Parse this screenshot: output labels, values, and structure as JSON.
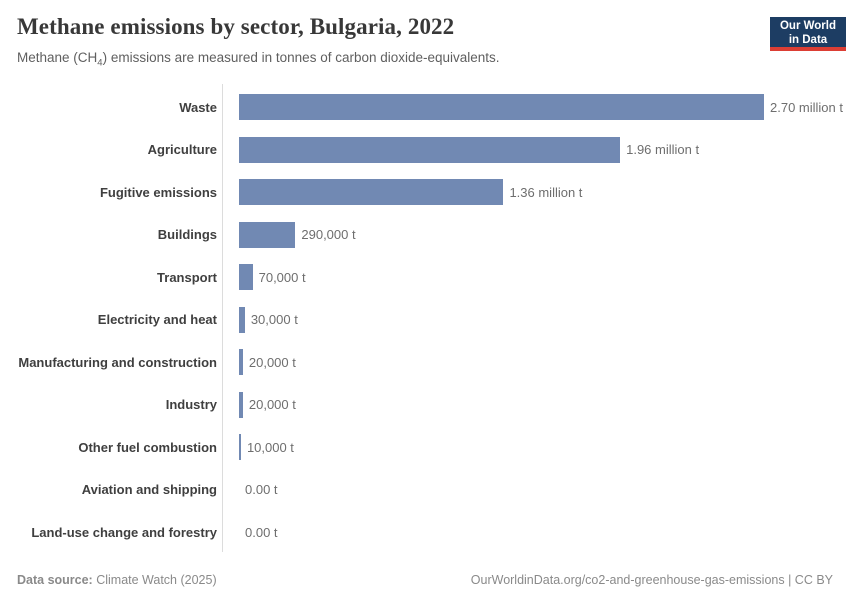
{
  "header": {
    "title": "Methane emissions by sector, Bulgaria, 2022",
    "subtitle_prefix": "Methane (CH",
    "subtitle_sub": "4",
    "subtitle_suffix": ") emissions are measured in tonnes of carbon dioxide-equivalents.",
    "logo": {
      "line1": "Our World",
      "line2": "in Data"
    }
  },
  "footer": {
    "source_label": "Data source:",
    "source_value": " Climate Watch (2025)",
    "credit": "OurWorldinData.org/co2-and-greenhouse-gas-emissions | CC BY"
  },
  "colors": {
    "bar": "#7189b3",
    "logo_bg": "#1d3d63",
    "logo_underline": "#dc3e34",
    "axis_line": "#dcdcdc"
  },
  "chart_data": {
    "type": "bar",
    "orientation": "horizontal",
    "title": "Methane emissions by sector, Bulgaria, 2022",
    "subtitle": "Methane (CH4) emissions are measured in tonnes of carbon dioxide-equivalents.",
    "unit": "t (tonnes of CO2-equivalents)",
    "categories": [
      "Waste",
      "Agriculture",
      "Fugitive emissions",
      "Buildings",
      "Transport",
      "Electricity and heat",
      "Manufacturing and construction",
      "Industry",
      "Other fuel combustion",
      "Aviation and shipping",
      "Land-use change and forestry"
    ],
    "values": [
      2700000,
      1960000,
      1360000,
      290000,
      70000,
      30000,
      20000,
      20000,
      10000,
      0,
      0
    ],
    "value_labels": [
      "2.70 million t",
      "1.96 million t",
      "1.36 million t",
      "290,000 t",
      "70,000 t",
      "30,000 t",
      "20,000 t",
      "20,000 t",
      "10,000 t",
      "0.00 t",
      "0.00 t"
    ],
    "xlim": [
      0,
      2700000
    ],
    "grid": false,
    "legend": "none"
  }
}
